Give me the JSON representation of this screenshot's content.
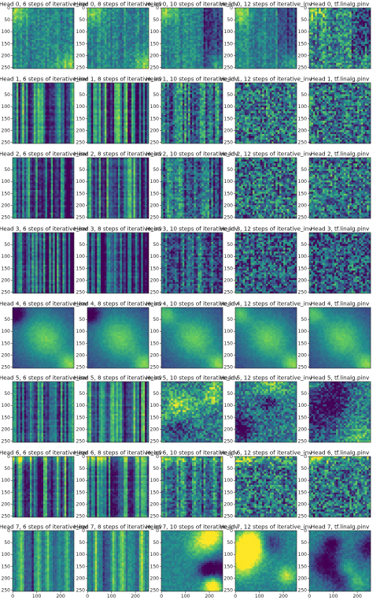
{
  "chart_data": {
    "type": "heatmap",
    "layout": {
      "rows": 8,
      "cols": 5
    },
    "colormap": "viridis",
    "colors": {
      "low": "#440154",
      "mid_low": "#3b528b",
      "mid": "#21918c",
      "mid_high": "#5ec962",
      "high": "#fde725"
    },
    "matrix_size": 256,
    "x_ticks": [
      "0",
      "100",
      "200"
    ],
    "x_tick_values": [
      0,
      100,
      200
    ],
    "y_ticks": [
      "50",
      "100",
      "150",
      "200",
      "250"
    ],
    "y_tick_values": [
      50,
      100,
      150,
      200,
      250
    ],
    "y_ticks_first_row": [
      "0",
      "50",
      "100",
      "150",
      "200",
      "250"
    ],
    "y_tick_values_first_row": [
      0,
      50,
      100,
      150,
      200,
      250
    ],
    "x_tick_row": 7,
    "zero_y_tick_rows": [
      6,
      7
    ],
    "panels": [
      [
        "Head 0, 6 steps of iterative_inv",
        "Head 0, 8 steps of iterative_inv",
        "Head 0, 10 steps of iterative_inv",
        "Head 0, 12 steps of iterative_inv",
        "Head 0, tf.linalg.pinv"
      ],
      [
        "Head 1, 6 steps of iterative_inv",
        "Head 1, 8 steps of iterative_inv",
        "Head 1, 10 steps of iterative_inv",
        "Head 1, 12 steps of iterative_inv",
        "Head 1, tf.linalg.pinv"
      ],
      [
        "Head 2, 6 steps of iterative_inv",
        "Head 2, 8 steps of iterative_inv",
        "Head 2, 10 steps of iterative_inv",
        "Head 2, 12 steps of iterative_inv",
        "Head 2, tf.linalg.pinv"
      ],
      [
        "Head 3, 6 steps of iterative_inv",
        "Head 3, 8 steps of iterative_inv",
        "Head 3, 10 steps of iterative_inv",
        "Head 3, 12 steps of iterative_inv",
        "Head 3, tf.linalg.pinv"
      ],
      [
        "Head 4, 6 steps of iterative_inv",
        "Head 4, 8 steps of iterative_inv",
        "Head 4, 10 steps of iterative_inv",
        "Head 4, 12 steps of iterative_inv",
        "Head 4, tf.linalg.pinv"
      ],
      [
        "Head 5, 6 steps of iterative_inv",
        "Head 5, 8 steps of iterative_inv",
        "Head 5, 10 steps of iterative_inv",
        "Head 5, 12 steps of iterative_inv",
        "Head 5, tf.linalg.pinv"
      ],
      [
        "Head 6, 6 steps of iterative_inv",
        "Head 6, 8 steps of iterative_inv",
        "Head 6, 10 steps of iterative_inv",
        "Head 6, 12 steps of iterative_inv",
        "Head 6, tf.linalg.pinv"
      ],
      [
        "Head 7, 6 steps of iterative_inv",
        "Head 7, 8 steps of iterative_inv",
        "Head 7, 10 steps of iterative_inv",
        "Head 7, 12 steps of iterative_inv",
        "Head 7, tf.linalg.pinv"
      ]
    ]
  }
}
